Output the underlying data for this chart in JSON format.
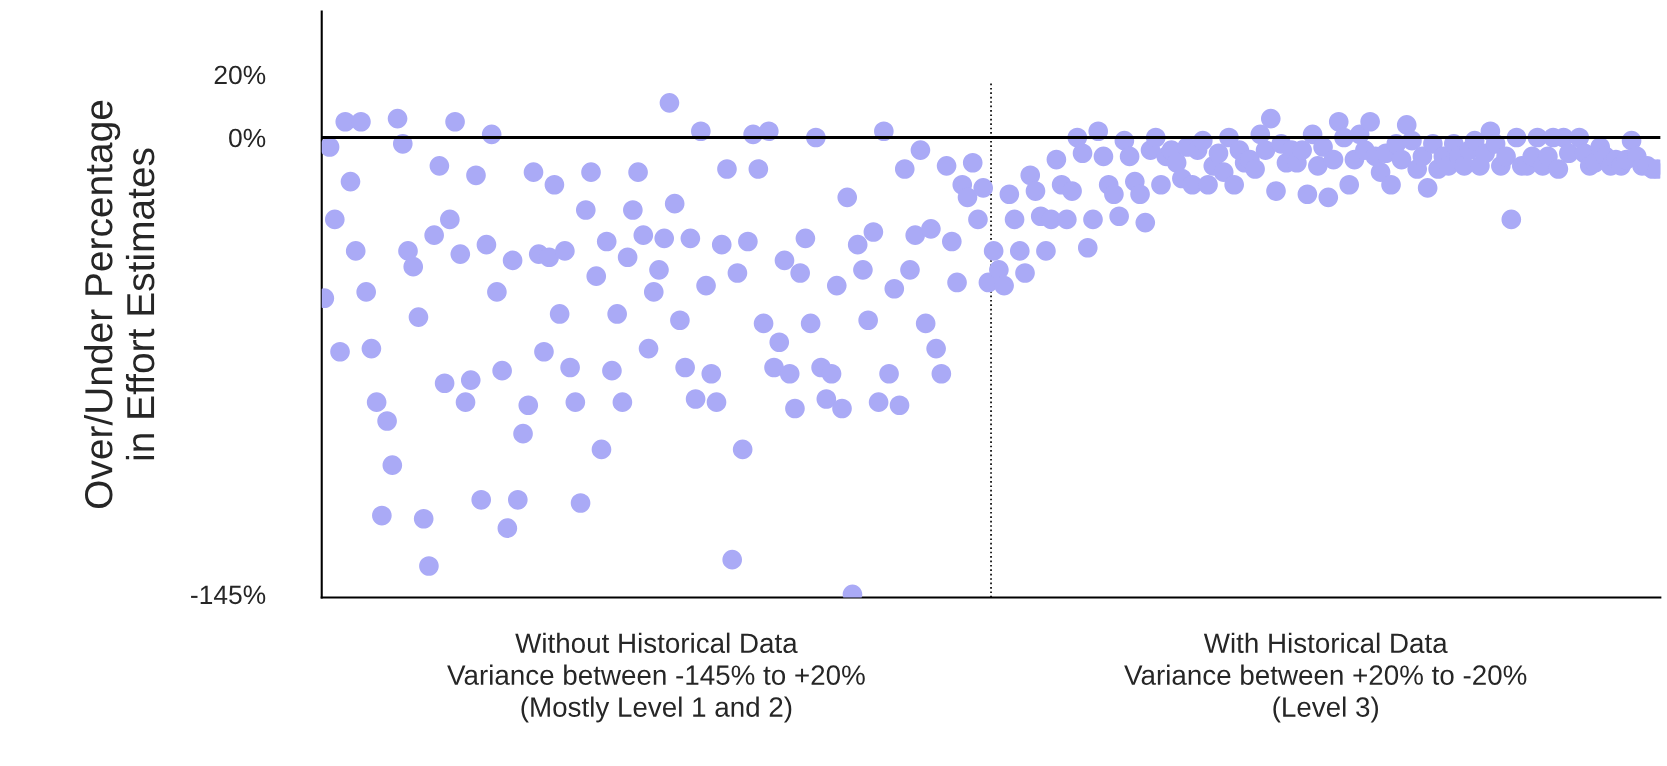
{
  "chart_data": {
    "type": "scatter",
    "ylabel": "Over/Under Percentage\nin Effort Estimates",
    "annotations": [
      "Without Historical Data\nVariance between -145% to +20%\n(Mostly Level 1 and 2)",
      "With Historical Data\nVariance between +20% to -20%\n(Level 3)"
    ],
    "categories": [
      null,
      null,
      null,
      null,
      null,
      null,
      null,
      null,
      null,
      null,
      null,
      null,
      null,
      null,
      null,
      null,
      null,
      null,
      null,
      null,
      null,
      null,
      null,
      null,
      null,
      null,
      null,
      null,
      null,
      null,
      null,
      null,
      null,
      null,
      null,
      null,
      null,
      null,
      null,
      null,
      null,
      null,
      null,
      null,
      null,
      null,
      null,
      null,
      null,
      null,
      null,
      null,
      null,
      null,
      null,
      null,
      null,
      null,
      null,
      null,
      null,
      null,
      null,
      null,
      null,
      null,
      null,
      null,
      null,
      null,
      null,
      null,
      null,
      null,
      null,
      null,
      null,
      null,
      null,
      null,
      null,
      null,
      null,
      null,
      null,
      null,
      null,
      null,
      null,
      null,
      null,
      null,
      null,
      null,
      null,
      null,
      null,
      null,
      null,
      null,
      null,
      null,
      null,
      null,
      null,
      null,
      null,
      null,
      null,
      null,
      null,
      null,
      null,
      null,
      null,
      null,
      null,
      null,
      null,
      null,
      null,
      null,
      null,
      null,
      null,
      null,
      null,
      null,
      null,
      null,
      null,
      null,
      null,
      null,
      null,
      null,
      null,
      null,
      null,
      null,
      null,
      null,
      null,
      null,
      null,
      null,
      null,
      null,
      null,
      null,
      null,
      null,
      null,
      null,
      null,
      null,
      null,
      null,
      null,
      null,
      null,
      null,
      null,
      null,
      null,
      null,
      null,
      null,
      null,
      null,
      null,
      null,
      null,
      null,
      null,
      null,
      null,
      null,
      null,
      null,
      null,
      null,
      null,
      null,
      null,
      null,
      null,
      null,
      null,
      null,
      null,
      null,
      null,
      null,
      null,
      null,
      null,
      null,
      null,
      null,
      null,
      null,
      null,
      null,
      null,
      null,
      null,
      null,
      null,
      null,
      null,
      null,
      null,
      null,
      null,
      null,
      null,
      null,
      null,
      null,
      null,
      null,
      null,
      null,
      null,
      null,
      null,
      null,
      null,
      null,
      null,
      null,
      null,
      null,
      null,
      null,
      null,
      null,
      null,
      null,
      null,
      null,
      null,
      null,
      null,
      null,
      null,
      null,
      null,
      null,
      null,
      null,
      null,
      null,
      null,
      null
    ],
    "ylim": [
      -146,
      40
    ],
    "yticks": [
      {
        "value": 20,
        "label": "20%"
      },
      {
        "value": 0,
        "label": "0%"
      },
      {
        "value": -145,
        "label": "-145%"
      }
    ],
    "tick_labels": "y",
    "grid": false,
    "legend": false,
    "marker": "circle",
    "ref_lines": [
      {
        "axis": "y",
        "value": 0,
        "color": "#000000",
        "line_style": "solid"
      }
    ],
    "series": [
      {
        "color": "#aaaaf6",
        "values": [
          -51,
          -3,
          -26,
          -68,
          5,
          -14,
          -36,
          5,
          -49,
          -67,
          -84,
          -120,
          -90,
          -104,
          6,
          -2,
          -36,
          -41,
          -57,
          -121,
          -136,
          -31,
          -9,
          -78,
          -26,
          5,
          -37,
          -84,
          -77,
          -12,
          -115,
          -34,
          1,
          -49,
          -74,
          -124,
          -39,
          -115,
          -94,
          -85,
          -11,
          -37,
          -68,
          -38,
          -15,
          -56,
          -36,
          -73,
          -84,
          -116,
          -23,
          -11,
          -44,
          -99,
          -33,
          -74,
          -56,
          -84,
          -38,
          -23,
          -11,
          -31,
          -67,
          -49,
          -42,
          -32,
          11,
          -21,
          -58,
          -73,
          -32,
          -83,
          2,
          -47,
          -75,
          -84,
          -34,
          -10,
          -134,
          -43,
          -99,
          -33,
          1,
          -10,
          -59,
          2,
          -73,
          -65,
          -39,
          -75,
          -86,
          -43,
          -32,
          -59,
          0,
          -73,
          -83,
          -75,
          -47,
          -86,
          -19,
          -145,
          -34,
          -42,
          -58,
          -30,
          -84,
          2,
          -75,
          -48,
          -85,
          -10,
          -42,
          -31,
          -4,
          -59,
          -29,
          -67,
          -75,
          -9,
          -33,
          -46,
          -15,
          -19,
          -8,
          -26,
          -16,
          -46,
          -36,
          -42,
          -47,
          -18,
          -26,
          -36,
          -43,
          -12,
          -17,
          -25,
          -36,
          -26,
          -7,
          -15,
          -26,
          -17,
          0,
          -5,
          -35,
          -26,
          2,
          -6,
          -15,
          -18,
          -25,
          -1,
          -6,
          -14,
          -18,
          -27,
          -4,
          0,
          -15,
          -6,
          -4,
          -8,
          -13,
          -3,
          -15,
          -4,
          -1,
          -15,
          -9,
          -5,
          -11,
          0,
          -15,
          -4,
          -8,
          -7,
          -10,
          1,
          -4,
          6,
          -17,
          -2,
          -8,
          -4,
          -8,
          -4,
          -18,
          1,
          -9,
          -3,
          -19,
          -7,
          5,
          0,
          -15,
          -7,
          1,
          -4,
          5,
          -6,
          -11,
          -5,
          -15,
          -2,
          -7,
          4,
          -1,
          -10,
          -6,
          -16,
          -2,
          -10,
          -6,
          -9,
          -2,
          -6,
          -9,
          -4,
          -1,
          -9,
          -5,
          2,
          -2,
          -9,
          -6,
          -26,
          0,
          -9,
          -9,
          -6,
          0,
          -9,
          -6,
          0,
          -10,
          0,
          -5,
          null,
          0,
          -5,
          -9,
          -8,
          -3,
          -6,
          -9,
          -7,
          -9,
          -7,
          -1,
          -6,
          -9,
          -9,
          -10,
          -10
        ]
      }
    ]
  }
}
